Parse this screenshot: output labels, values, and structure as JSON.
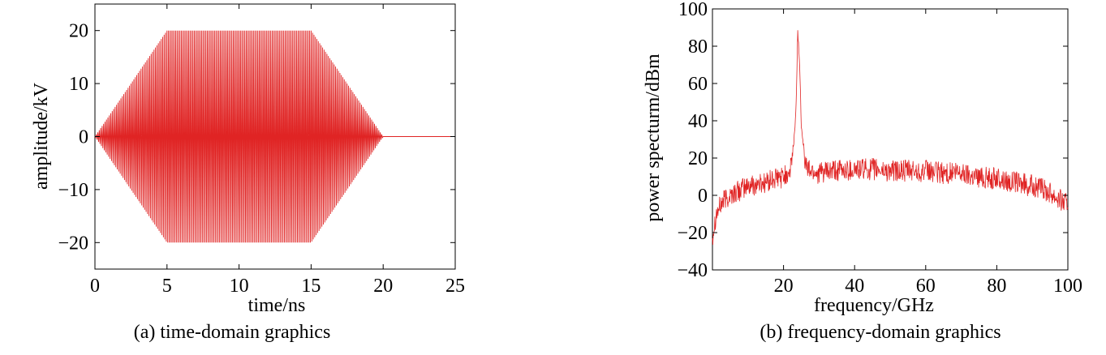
{
  "colors": {
    "signal": "#e02424",
    "axis": "#000000",
    "background": "#ffffff"
  },
  "chart_data": [
    {
      "type": "line",
      "caption": "(a) time-domain graphics",
      "xlabel": "time/ns",
      "ylabel": "amplitude/kV",
      "xlim": [
        0,
        25
      ],
      "ylim": [
        -25,
        25
      ],
      "xticks": [
        0,
        5,
        10,
        15,
        20,
        25
      ],
      "yticks": [
        -20,
        -10,
        0,
        10,
        20
      ],
      "grid": false,
      "series": [
        {
          "envelope": {
            "x": [
              0,
              5,
              15,
              20,
              25
            ],
            "y": [
              0,
              20,
              20,
              0,
              0
            ]
          },
          "oscillation_period": 0.1
        }
      ]
    },
    {
      "type": "line",
      "caption": "(b) frequency-domain graphics",
      "xlabel": "frequency/GHz",
      "ylabel": "power specturm/dBm",
      "xlim": [
        0,
        100
      ],
      "ylim": [
        -40,
        100
      ],
      "xticks": [
        20,
        40,
        60,
        80,
        100
      ],
      "yticks": [
        -40,
        -20,
        0,
        20,
        40,
        60,
        80,
        100
      ],
      "grid": false,
      "series": [
        {
          "x": [
            0,
            1,
            3,
            5,
            8,
            10,
            15,
            20,
            22,
            23,
            23.5,
            24,
            24.5,
            25,
            25.5,
            26,
            27,
            30,
            35,
            40,
            45,
            50,
            55,
            60,
            65,
            70,
            75,
            80,
            85,
            90,
            95,
            100
          ],
          "y": [
            -22,
            -10,
            -3,
            0,
            3,
            5,
            7,
            10,
            14,
            30,
            45,
            88,
            72,
            38,
            30,
            18,
            14,
            12,
            13,
            14,
            14,
            13,
            13,
            13,
            12,
            12,
            10,
            9,
            7,
            5,
            2,
            -5
          ],
          "noise_amplitude_dB": 6
        }
      ]
    }
  ]
}
